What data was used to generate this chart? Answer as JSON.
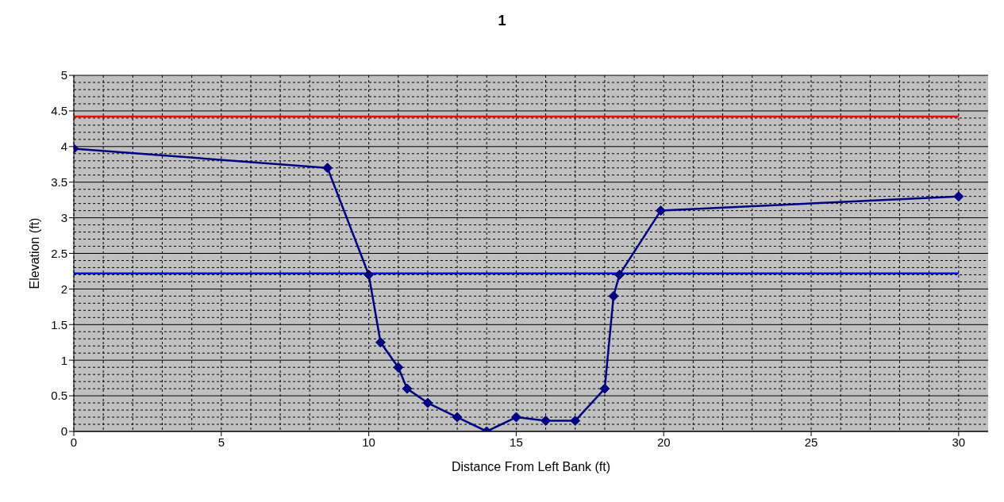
{
  "chart_data": {
    "type": "line",
    "title": "1",
    "xlabel": "Distance From Left Bank  (ft)",
    "ylabel": "Elevation (ft)",
    "xlim": [
      0,
      31
    ],
    "xticks": [
      0,
      5,
      10,
      15,
      20,
      25,
      30
    ],
    "ylim": [
      0,
      5
    ],
    "yticks": [
      0,
      0.5,
      1,
      1.5,
      2,
      2.5,
      3,
      3.5,
      4,
      4.5,
      5
    ],
    "grid": true,
    "marker": "diamond",
    "line_style": "solid",
    "series": [
      {
        "color": "#000080",
        "x": [
          0,
          8.6,
          10,
          10.4,
          11,
          11.3,
          12,
          13,
          14,
          15,
          16,
          17,
          18,
          18.3,
          18.5,
          19.9,
          30
        ],
        "values": [
          3.97,
          3.7,
          2.2,
          1.25,
          0.9,
          0.6,
          0.4,
          0.2,
          0,
          0.2,
          0.15,
          0.15,
          0.6,
          1.9,
          2.2,
          3.1,
          3.3
        ]
      },
      {
        "color": "#ff0000",
        "marker": "none",
        "x": [
          0,
          30
        ],
        "values": [
          4.42,
          4.42
        ]
      },
      {
        "color": "#0000ff",
        "marker": "none",
        "x": [
          0,
          30
        ],
        "values": [
          2.22,
          2.22
        ]
      }
    ]
  }
}
